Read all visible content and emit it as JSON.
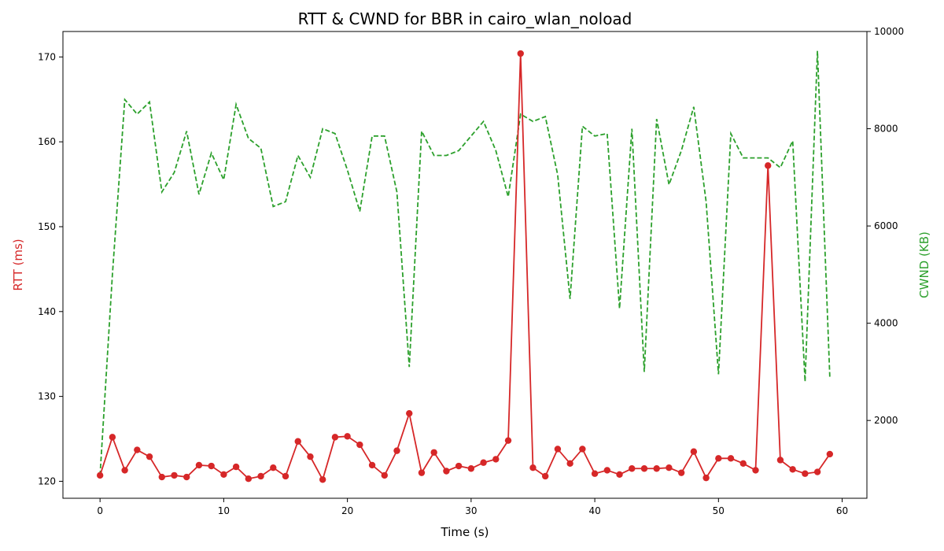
{
  "chart_data": {
    "type": "line",
    "title": "RTT & CWND for BBR in cairo_wlan_noload",
    "xlabel": "Time (s)",
    "ylabel_left": "RTT (ms)",
    "ylabel_right": "CWND (KB)",
    "xlim": [
      -3,
      62
    ],
    "ylim_left": [
      118,
      173
    ],
    "ylim_right": [
      400,
      10000
    ],
    "xticks": [
      0,
      10,
      20,
      30,
      40,
      50,
      60
    ],
    "yticks_left": [
      120,
      130,
      140,
      150,
      160,
      170
    ],
    "yticks_right": [
      2000,
      4000,
      6000,
      8000,
      10000
    ],
    "grid": false,
    "colors": {
      "rtt": "#d62728",
      "cwnd": "#2ca02c"
    },
    "x": [
      0,
      1,
      2,
      3,
      4,
      5,
      6,
      7,
      8,
      9,
      10,
      11,
      12,
      13,
      14,
      15,
      16,
      17,
      18,
      19,
      20,
      21,
      22,
      23,
      24,
      25,
      26,
      27,
      28,
      29,
      30,
      31,
      32,
      33,
      34,
      35,
      36,
      37,
      38,
      39,
      40,
      41,
      42,
      43,
      44,
      45,
      46,
      47,
      48,
      49,
      50,
      51,
      52,
      53,
      54,
      55,
      56,
      57,
      58,
      59
    ],
    "series": [
      {
        "axis": "left",
        "style": "solid-markers",
        "values": [
          120.7,
          125.2,
          121.3,
          123.7,
          122.9,
          120.5,
          120.7,
          120.5,
          121.9,
          121.8,
          120.8,
          121.7,
          120.3,
          120.6,
          121.6,
          120.6,
          124.7,
          122.9,
          120.2,
          125.2,
          125.3,
          124.3,
          121.9,
          120.7,
          123.6,
          128.0,
          121.0,
          123.4,
          121.2,
          121.8,
          121.5,
          122.2,
          122.6,
          124.8,
          170.4,
          121.6,
          120.6,
          123.8,
          122.1,
          123.8,
          120.9,
          121.3,
          120.8,
          121.5,
          121.5,
          121.5,
          121.6,
          121.0,
          123.5,
          120.4,
          122.7,
          122.7,
          122.1,
          121.3,
          157.2,
          122.5,
          121.4,
          120.9,
          121.1,
          123.2
        ]
      },
      {
        "axis": "right",
        "style": "dashed",
        "values": [
          870,
          5000,
          8600,
          8300,
          8550,
          6700,
          7100,
          7950,
          6650,
          7500,
          6950,
          8500,
          7800,
          7600,
          6400,
          6500,
          7450,
          7000,
          8000,
          7900,
          7150,
          6300,
          7850,
          7850,
          6700,
          3100,
          7950,
          7450,
          7450,
          7550,
          7850,
          8150,
          7550,
          6600,
          8300,
          8150,
          8250,
          7050,
          4500,
          8050,
          7850,
          7900,
          4300,
          8000,
          3000,
          8200,
          6850,
          7550,
          8450,
          6500,
          2950,
          7900,
          7400,
          7400,
          7400,
          7200,
          7750,
          2800,
          9600,
          2900
        ]
      }
    ]
  }
}
